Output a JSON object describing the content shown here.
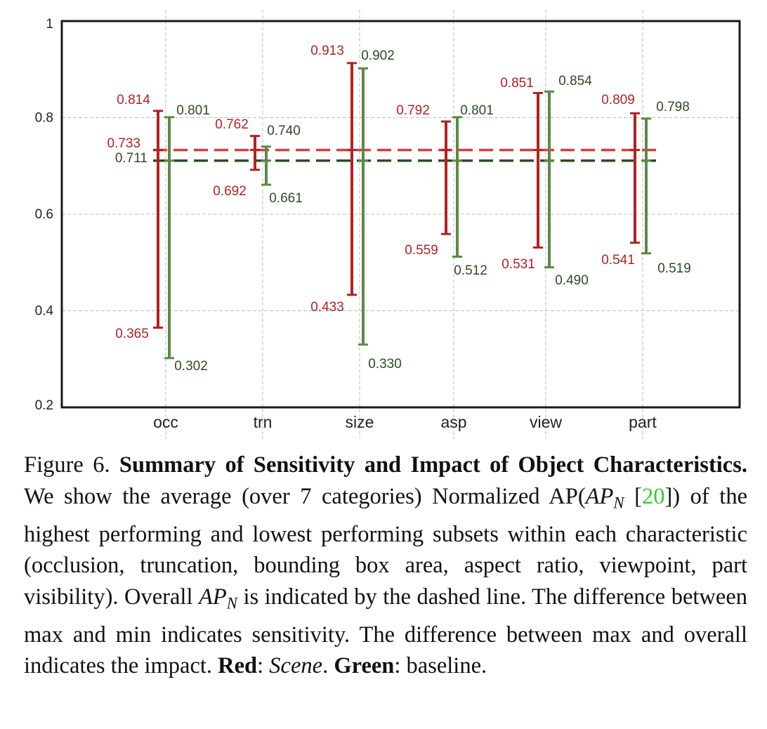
{
  "chart_data": {
    "type": "errorbar",
    "categories": [
      "occ",
      "trn",
      "size",
      "asp",
      "view",
      "part"
    ],
    "ylim": [
      0.2,
      1.0
    ],
    "yticks": [
      "0.2",
      "0.4",
      "0.6",
      "0.8",
      "1"
    ],
    "grid": true,
    "series": [
      {
        "color": "#b22222",
        "overall": 0.733,
        "overall_label": "0.733",
        "max": [
          0.814,
          0.762,
          0.913,
          0.792,
          0.851,
          0.809
        ],
        "min": [
          0.365,
          0.692,
          0.433,
          0.559,
          0.531,
          0.541
        ],
        "max_labels": [
          "0.814",
          "0.762",
          "0.913",
          "0.792",
          "0.851",
          "0.809"
        ],
        "min_labels": [
          "0.365",
          "0.692",
          "0.433",
          "0.559",
          "0.531",
          "0.541"
        ]
      },
      {
        "color": "#5a8a46",
        "overall": 0.711,
        "overall_label": "0.711",
        "max": [
          0.801,
          0.74,
          0.902,
          0.801,
          0.854,
          0.798
        ],
        "min": [
          0.302,
          0.661,
          0.33,
          0.512,
          0.49,
          0.519
        ],
        "max_labels": [
          "0.801",
          "0.740",
          "0.902",
          "0.801",
          "0.854",
          "0.798"
        ],
        "min_labels": [
          "0.302",
          "0.661",
          "0.330",
          "0.512",
          "0.490",
          "0.519"
        ]
      }
    ],
    "overall_line_colors": [
      "#e03a3a",
      "#2f4a26"
    ],
    "label_text_colors": [
      "#b22222",
      "#2f4a26"
    ]
  },
  "caption": {
    "figure_label": "Figure 6.",
    "bold_title": "Summary of Sensitivity and Impact of Object Characteristics.",
    "text_1": "We show the average (over 7 categories) Normalized AP(",
    "ap_main": "AP",
    "ap_sub": "N",
    "cite_open": " [",
    "cite_num": "20",
    "text_2": "]) of the highest performing and lowest performing subsets within each characteristic (occlusion, truncation, bounding box area, aspect ratio, viewpoint, part visibility). Overall ",
    "text_3": " is indicated by the dashed line. The difference between max and min indicates sensitivity. The difference between max and overall indicates the impact. ",
    "red_label": "Red",
    "colon_1": ": ",
    "scene_label": "Scene",
    "period_1": ". ",
    "green_label": "Green",
    "text_4": ": baseline."
  }
}
